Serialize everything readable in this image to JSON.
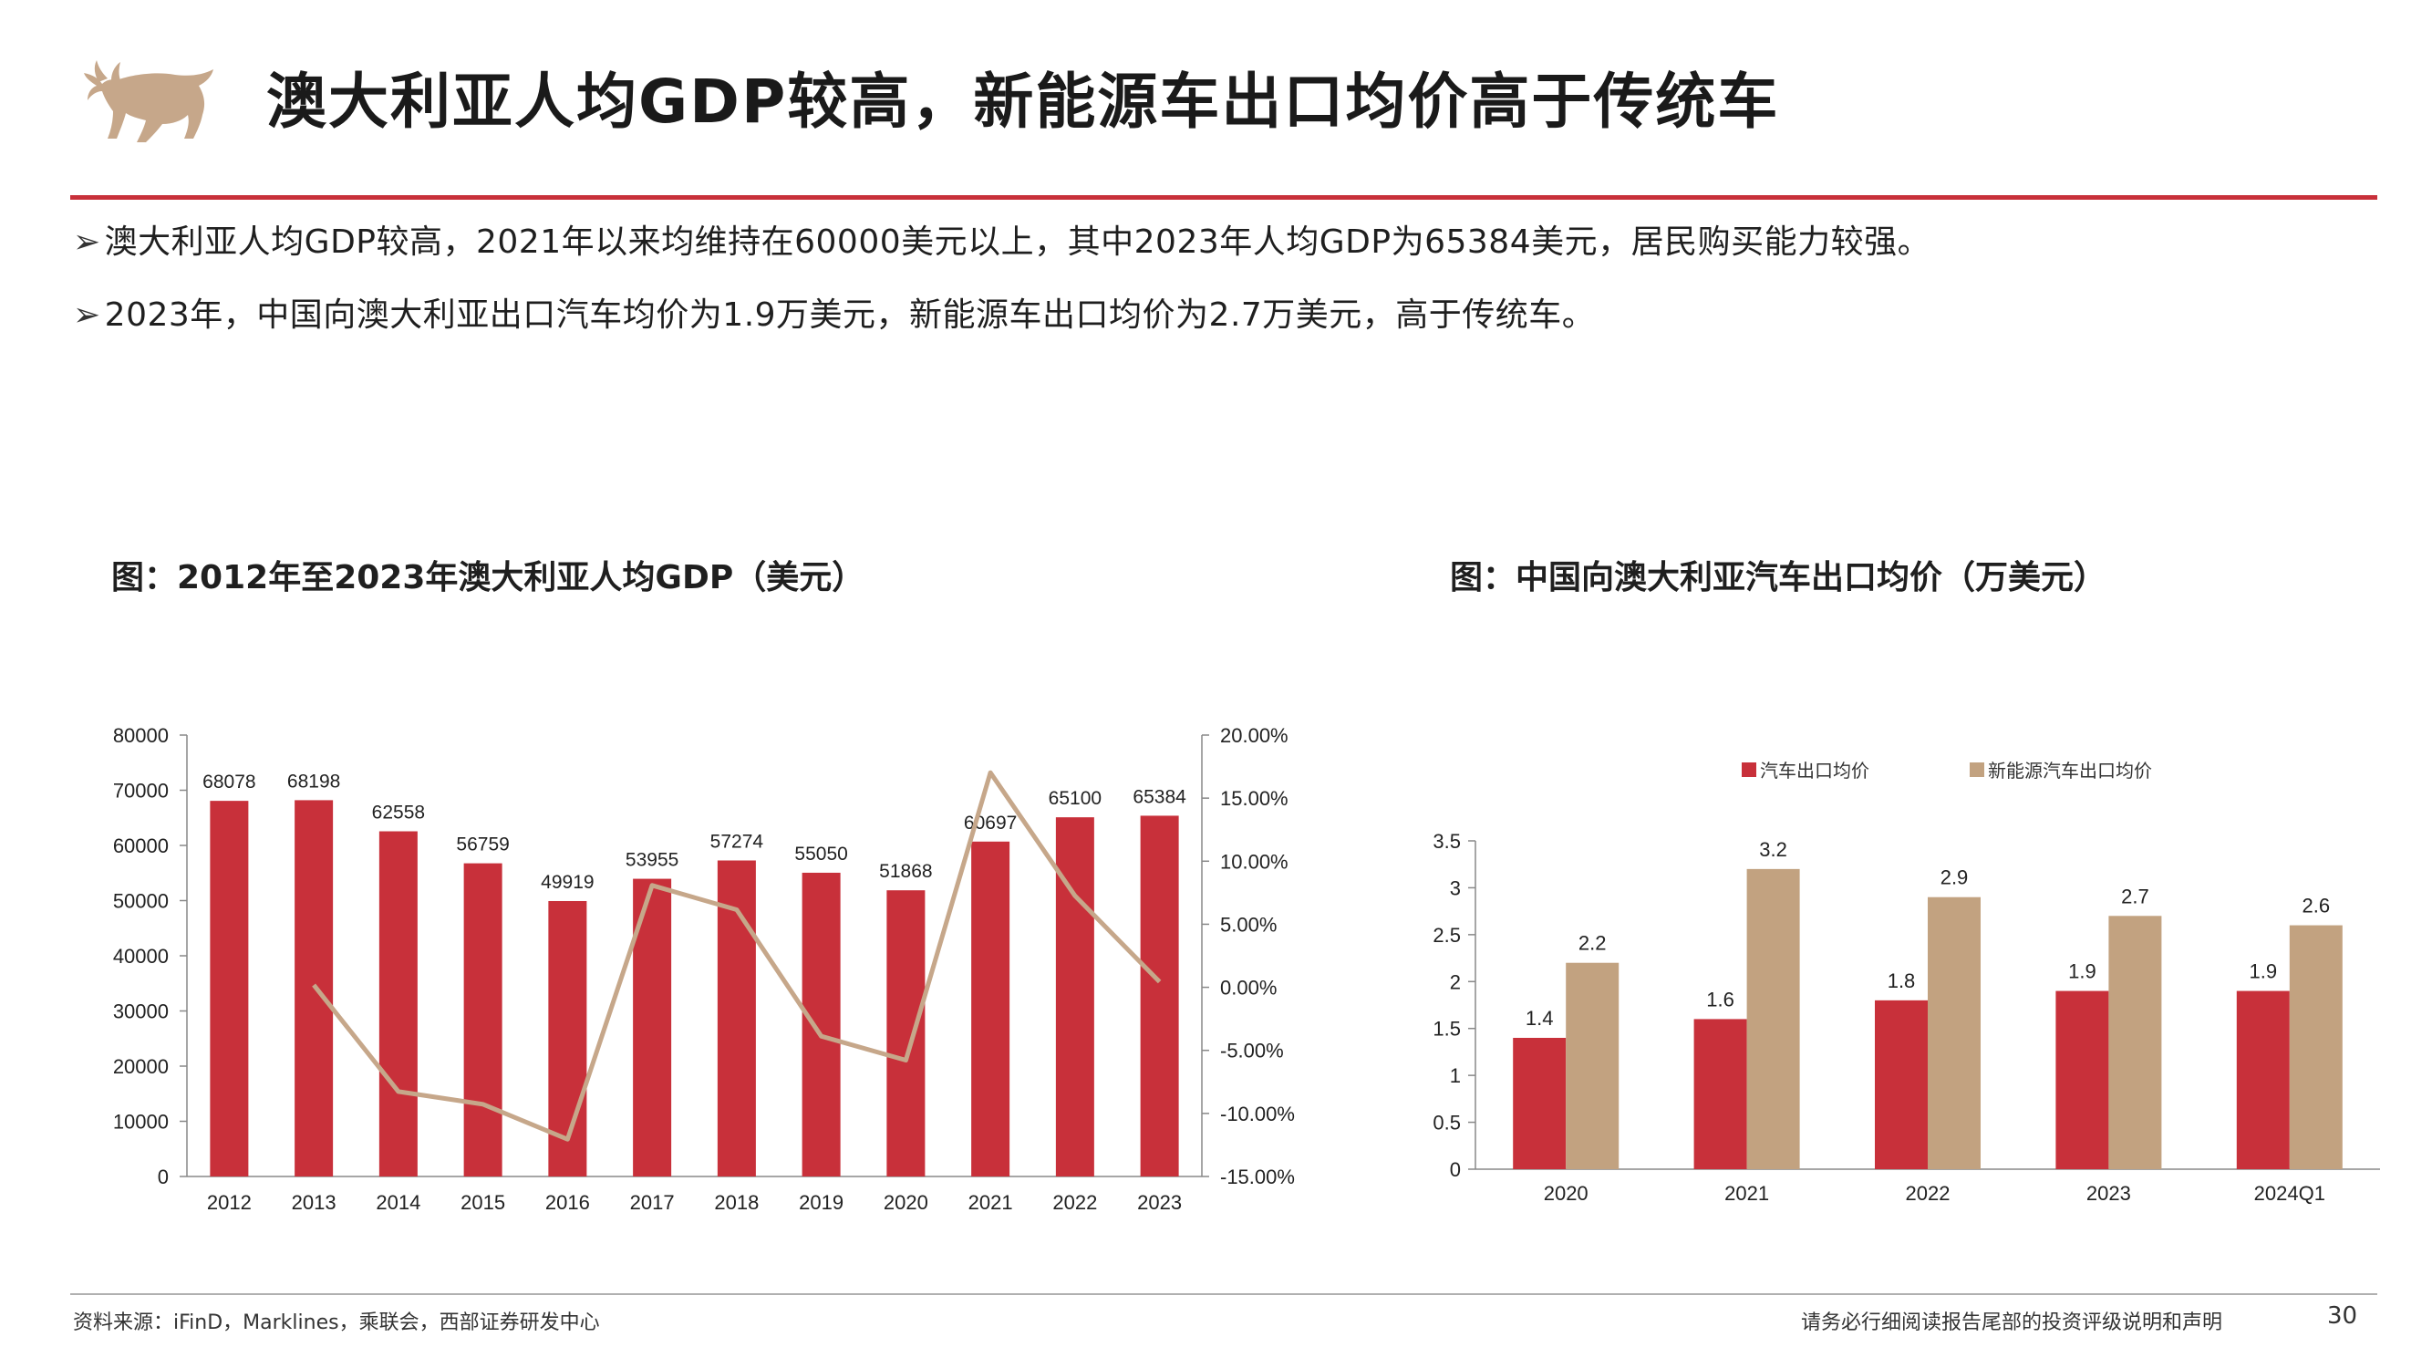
{
  "header": {
    "title": "澳大利亚人均GDP较高，新能源车出口均价高于传统车",
    "logo_icon": "bull-icon",
    "accent_color": "#c8303a",
    "logo_color": "#c6a78a"
  },
  "bullets": [
    {
      "marker": "➢",
      "text": "澳大利亚人均GDP较高，2021年以来均维持在60000美元以上，其中2023年人均GDP为65384美元，居民购买能力较强。"
    },
    {
      "marker": "➢",
      "text": "2023年，中国向澳大利亚出口汽车均价为1.9万美元，新能源车出口均价为2.7万美元，高于传统车。"
    }
  ],
  "chart_data": [
    {
      "type": "bar",
      "title": "图：2012年至2023年澳大利亚人均GDP（美元）",
      "categories": [
        "2012",
        "2013",
        "2014",
        "2015",
        "2016",
        "2017",
        "2018",
        "2019",
        "2020",
        "2021",
        "2022",
        "2023"
      ],
      "series": [
        {
          "values": [
            68078,
            68198,
            62558,
            56759,
            49919,
            53955,
            57274,
            55050,
            51868,
            60697,
            65100,
            65384
          ],
          "color": "#c8303a",
          "axis": "left",
          "data_labels": true
        },
        {
          "type": "line",
          "values": [
            null,
            0.18,
            -8.27,
            -9.27,
            -12.05,
            8.08,
            6.15,
            -3.88,
            -5.78,
            17.02,
            7.25,
            0.44
          ],
          "color": "#c6a78a",
          "axis": "right",
          "unit": "%"
        }
      ],
      "yticks_left": [
        0,
        10000,
        20000,
        30000,
        40000,
        50000,
        60000,
        70000,
        80000
      ],
      "ylim_left": [
        0,
        80000
      ],
      "yticks_right": [
        "20.00%",
        "15.00%",
        "10.00%",
        "5.00%",
        "0.00%",
        "-5.00%",
        "-10.00%",
        "-15.00%"
      ],
      "ylim_right": [
        -15,
        20
      ],
      "grid": false
    },
    {
      "type": "bar",
      "title": "图：中国向澳大利亚汽车出口均价（万美元）",
      "categories": [
        "2020",
        "2021",
        "2022",
        "2023",
        "2024Q1"
      ],
      "series": [
        {
          "name": "汽车出口均价",
          "values": [
            1.4,
            1.6,
            1.8,
            1.9,
            1.9
          ],
          "color": "#c8303a"
        },
        {
          "name": "新能源汽车出口均价",
          "values": [
            2.2,
            3.2,
            2.9,
            2.7,
            2.6
          ],
          "color": "#c2a280"
        }
      ],
      "yticks": [
        "0",
        "0.5",
        "1",
        "1.5",
        "2",
        "2.5",
        "3",
        "3.5"
      ],
      "ylim": [
        0,
        3.5
      ],
      "legend": "top",
      "grid": false
    }
  ],
  "footer": {
    "source": "资料来源：iFinD，Marklines，乘联会，西部证券研发中心",
    "disclaimer": "请务必行细阅读报告尾部的投资评级说明和声明",
    "page_number": "30"
  }
}
